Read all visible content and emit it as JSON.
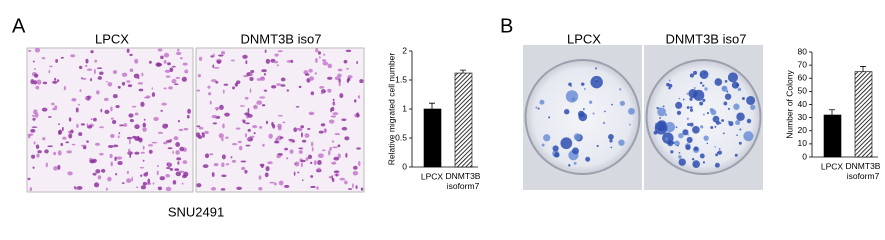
{
  "panels": [
    {
      "label": "A",
      "images": [
        "LPCX",
        "DNMT3B iso7"
      ],
      "caption": "SNU2491"
    },
    {
      "label": "B",
      "images": [
        "LPCX",
        "DNMT3B iso7"
      ]
    }
  ],
  "chart_data": [
    {
      "type": "bar",
      "y_label": "Relative migrated cell number",
      "categories": [
        "LPCX",
        "DNMT3B isoform7"
      ],
      "values": [
        1,
        1.62
      ],
      "errors": [
        0.1,
        0.05
      ],
      "patterns": [
        "solid",
        "hatch"
      ],
      "color": "#000000",
      "ylim": [
        0,
        2
      ],
      "yticks": [
        0,
        0.5,
        1,
        1.5,
        2
      ]
    },
    {
      "type": "bar",
      "y_label": "Number of Colony",
      "categories": [
        "LPCX",
        "DNMT3B isoform7"
      ],
      "values": [
        32,
        65
      ],
      "errors": [
        4,
        4
      ],
      "patterns": [
        "solid",
        "hatch"
      ],
      "color": "#000000",
      "ylim": [
        0,
        80
      ],
      "yticks": [
        0,
        10,
        20,
        30,
        40,
        50,
        60,
        70,
        80
      ]
    }
  ]
}
